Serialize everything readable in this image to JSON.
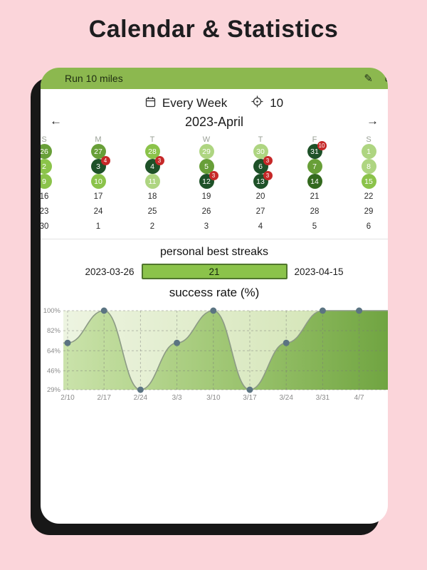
{
  "page": {
    "title": "Calendar & Statistics"
  },
  "appbar": {
    "title": "Run 10 miles",
    "edit_icon": "✎"
  },
  "schedule": {
    "frequency_label": "Every Week",
    "target_value": "10"
  },
  "month_nav": {
    "prev": "←",
    "label": "2023-April",
    "next": "→"
  },
  "calendar": {
    "day_headers": [
      "S",
      "M",
      "T",
      "W",
      "T",
      "F",
      "S"
    ],
    "circle_colors": {
      "g1": "#aed581",
      "g2": "#8bc34a",
      "g3": "#689f38",
      "g4": "#33691e",
      "g5": "#1e5128"
    },
    "badge_color": "#c62828",
    "weeks": [
      [
        {
          "day": "26",
          "circle": "g3"
        },
        {
          "day": "27",
          "circle": "g3"
        },
        {
          "day": "28",
          "circle": "g2"
        },
        {
          "day": "29",
          "circle": "g1"
        },
        {
          "day": "30",
          "circle": "g1"
        },
        {
          "day": "31",
          "circle": "g5",
          "badge": "10"
        },
        {
          "day": "1",
          "circle": "g1"
        }
      ],
      [
        {
          "day": "2",
          "circle": "g2"
        },
        {
          "day": "3",
          "circle": "g5",
          "badge": "4"
        },
        {
          "day": "4",
          "circle": "g5",
          "badge": "3"
        },
        {
          "day": "5",
          "circle": "g3"
        },
        {
          "day": "6",
          "circle": "g5",
          "badge": "3"
        },
        {
          "day": "7",
          "circle": "g3"
        },
        {
          "day": "8",
          "circle": "g1"
        }
      ],
      [
        {
          "day": "9",
          "circle": "g2"
        },
        {
          "day": "10",
          "circle": "g2"
        },
        {
          "day": "11",
          "circle": "g1"
        },
        {
          "day": "12",
          "circle": "g5",
          "badge": "3"
        },
        {
          "day": "13",
          "circle": "g5",
          "badge": "3"
        },
        {
          "day": "14",
          "circle": "g4"
        },
        {
          "day": "15",
          "circle": "g2"
        }
      ],
      [
        {
          "day": "16"
        },
        {
          "day": "17"
        },
        {
          "day": "18"
        },
        {
          "day": "19"
        },
        {
          "day": "20"
        },
        {
          "day": "21"
        },
        {
          "day": "22"
        }
      ],
      [
        {
          "day": "23"
        },
        {
          "day": "24"
        },
        {
          "day": "25"
        },
        {
          "day": "26"
        },
        {
          "day": "27"
        },
        {
          "day": "28"
        },
        {
          "day": "29"
        }
      ],
      [
        {
          "day": "30"
        },
        {
          "day": "1"
        },
        {
          "day": "2"
        },
        {
          "day": "3"
        },
        {
          "day": "4"
        },
        {
          "day": "5"
        },
        {
          "day": "6"
        }
      ]
    ]
  },
  "streaks": {
    "title": "personal best streaks",
    "start_date": "2023-03-26",
    "best_value": "21",
    "end_date": "2023-04-15"
  },
  "chart_section": {
    "title": "success rate (%)"
  },
  "chart_data": {
    "type": "area",
    "title": "success rate (%)",
    "x": [
      "2/10",
      "2/17",
      "2/24",
      "3/3",
      "3/10",
      "3/17",
      "3/24",
      "3/31",
      "4/7"
    ],
    "values": [
      71,
      100,
      29,
      71,
      100,
      29,
      71,
      100,
      100
    ],
    "y_ticks": [
      "100%",
      "82%",
      "64%",
      "46%",
      "29%"
    ],
    "y_tick_values": [
      100,
      82,
      64,
      46,
      29
    ],
    "ylim": [
      29,
      100
    ],
    "grid": "dashed",
    "line_color": "#8c9a85",
    "dot_color": "#5b7482",
    "fill_left": "rgba(150,200,90,0.40)",
    "fill_right": "rgba(104,159,56,0.92)",
    "bg_left": "#edf4e1",
    "bg_right": "#cfe2ae"
  }
}
